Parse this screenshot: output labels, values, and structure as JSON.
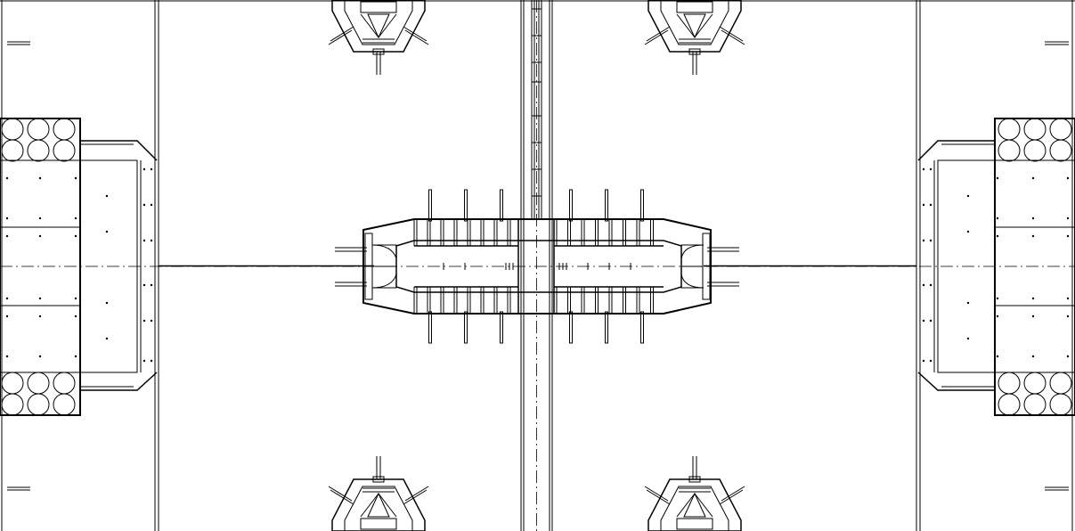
{
  "drawing": {
    "type": "structural-plan",
    "background": "#ffffff",
    "stroke": "#000000",
    "column_anchors": {
      "count": 4,
      "positions": [
        "top-left",
        "top-right",
        "bottom-left",
        "bottom-right"
      ]
    },
    "pile_groups": {
      "count": 4,
      "circles_per_group": 6,
      "positions": [
        "left-top",
        "left-bottom",
        "right-top",
        "right-bottom"
      ]
    },
    "central_connector": {
      "fin_plates_top": 6,
      "fin_plates_bottom": 6,
      "stiffener_bays_per_side": 8
    }
  }
}
